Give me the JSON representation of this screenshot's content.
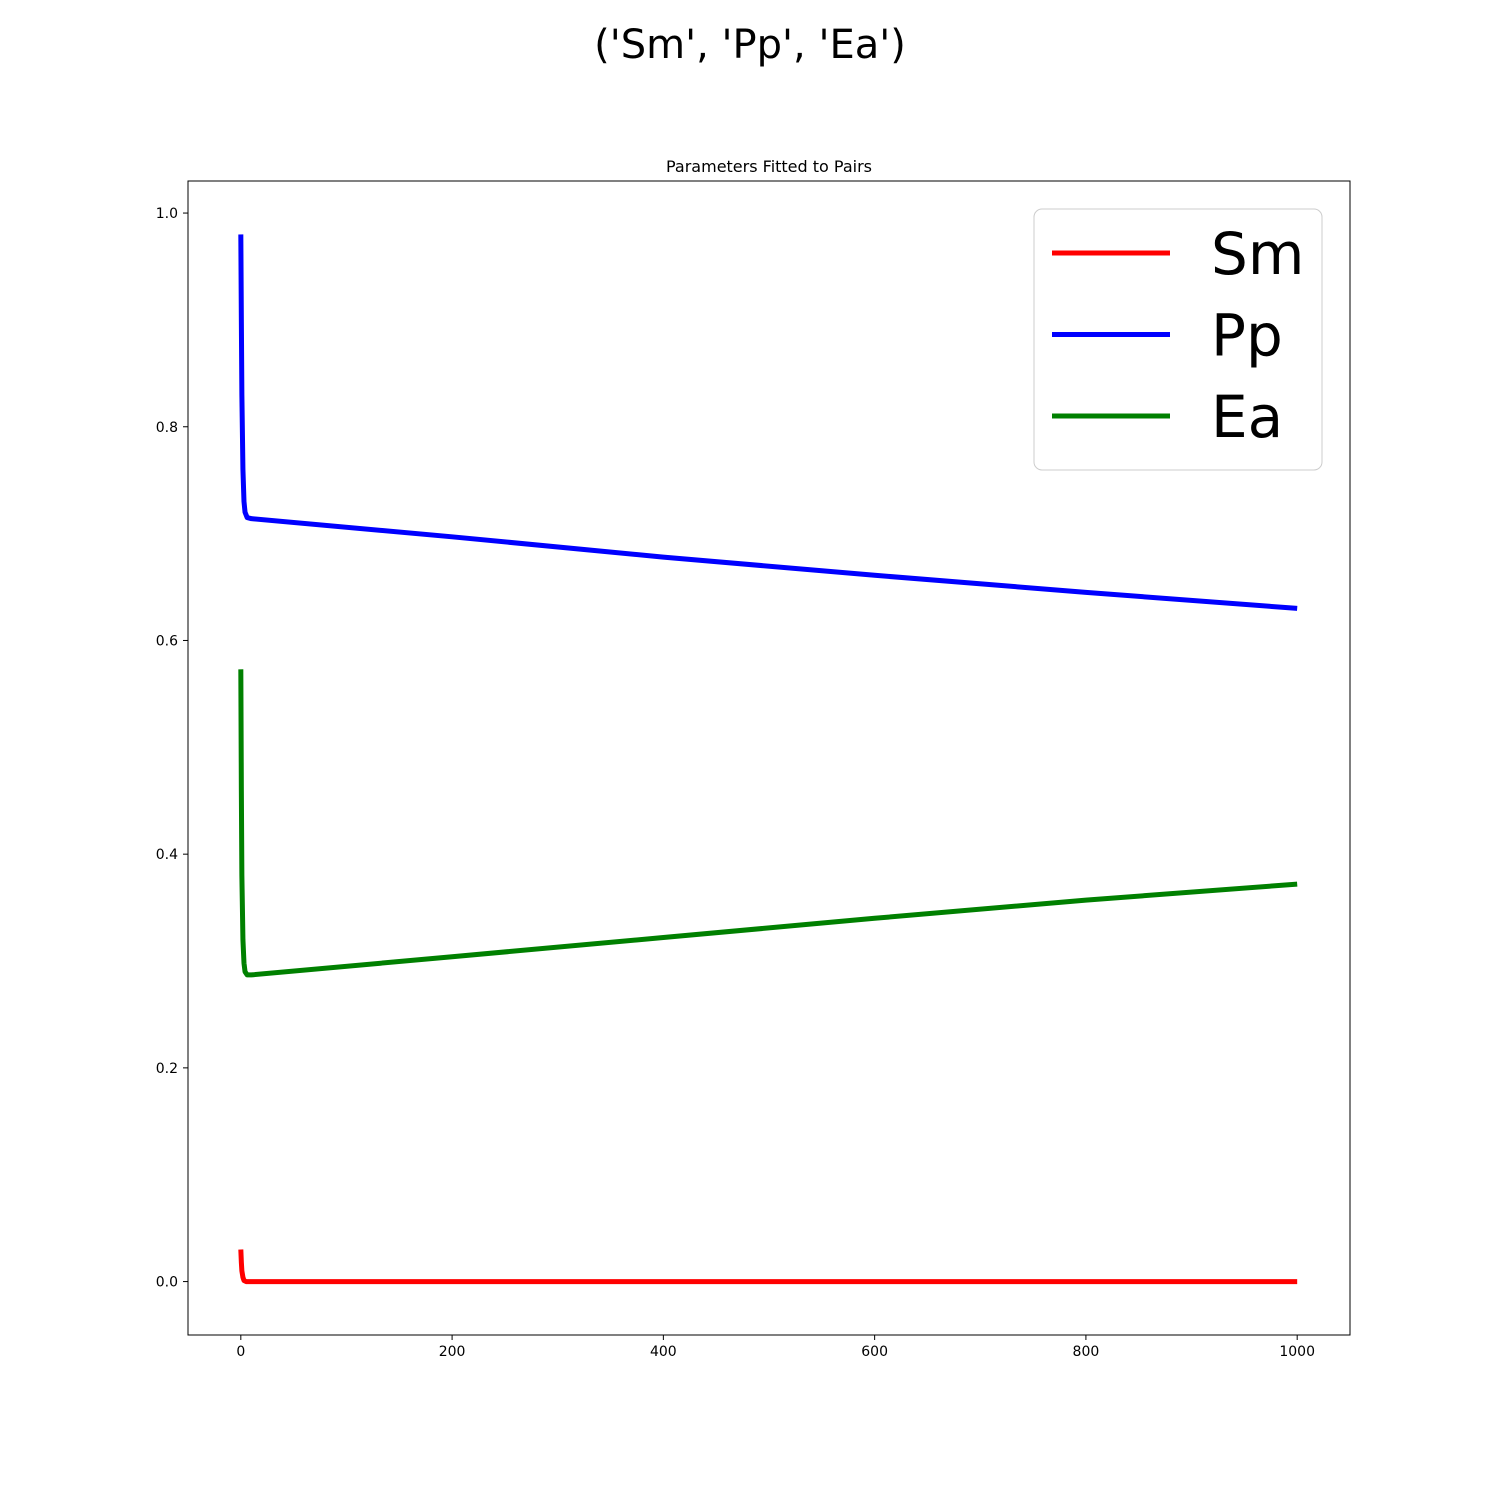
{
  "figure": {
    "suptitle": "('Sm', 'Pp', 'Ea')"
  },
  "chart_data": {
    "type": "line",
    "title": "Parameters Fitted to Pairs",
    "xlabel": "",
    "ylabel": "",
    "xlim": [
      -50,
      1050
    ],
    "ylim": [
      -0.05,
      1.03
    ],
    "xticks": [
      0,
      200,
      400,
      600,
      800,
      1000
    ],
    "xtick_labels": [
      "0",
      "200",
      "400",
      "600",
      "800",
      "1000"
    ],
    "yticks": [
      0.0,
      0.2,
      0.4,
      0.6,
      0.8,
      1.0
    ],
    "ytick_labels": [
      "0.0",
      "0.2",
      "0.4",
      "0.6",
      "0.8",
      "1.0"
    ],
    "grid": false,
    "legend_position": "top-right",
    "series": [
      {
        "name": "Sm",
        "color": "#ff0000",
        "points": [
          [
            0,
            0.03
          ],
          [
            0.5,
            0.018
          ],
          [
            1,
            0.01
          ],
          [
            2,
            0.004
          ],
          [
            3,
            0.001
          ],
          [
            5,
            0.0
          ],
          [
            10,
            0.0
          ],
          [
            100,
            0.0
          ],
          [
            500,
            0.0
          ],
          [
            1000,
            0.0
          ]
        ]
      },
      {
        "name": "Pp",
        "color": "#0000ff",
        "points": [
          [
            0,
            0.98
          ],
          [
            0.5,
            0.9
          ],
          [
            1,
            0.83
          ],
          [
            2,
            0.76
          ],
          [
            3,
            0.73
          ],
          [
            4,
            0.72
          ],
          [
            6,
            0.715
          ],
          [
            10,
            0.714
          ],
          [
            200,
            0.697
          ],
          [
            400,
            0.678
          ],
          [
            600,
            0.661
          ],
          [
            800,
            0.645
          ],
          [
            1000,
            0.63
          ]
        ]
      },
      {
        "name": "Ea",
        "color": "#008000",
        "points": [
          [
            0,
            0.573
          ],
          [
            0.5,
            0.46
          ],
          [
            1,
            0.38
          ],
          [
            2,
            0.32
          ],
          [
            3,
            0.298
          ],
          [
            4,
            0.29
          ],
          [
            6,
            0.287
          ],
          [
            10,
            0.287
          ],
          [
            200,
            0.304
          ],
          [
            400,
            0.322
          ],
          [
            600,
            0.34
          ],
          [
            800,
            0.357
          ],
          [
            1000,
            0.372
          ]
        ]
      }
    ]
  }
}
